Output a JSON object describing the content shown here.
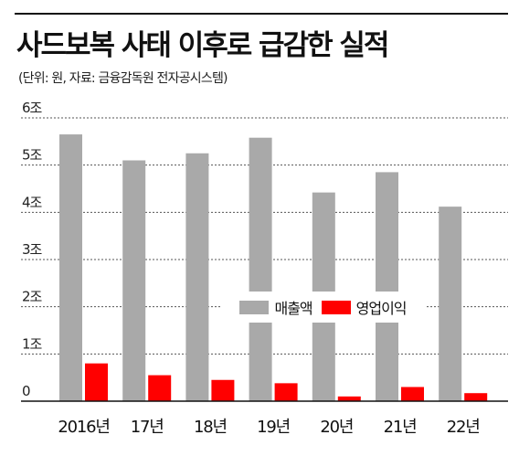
{
  "title": "사드보복 사태 이후로 급감한 실적",
  "subtitle": "(단위: 원, 자료: 금융감독원 전자공시스템)",
  "colors": {
    "revenue": "#a9a9a9",
    "operating_profit": "#ff0000",
    "grid": "#555555"
  },
  "chart_data": {
    "type": "bar",
    "title": "사드보복 사태 이후로 급감한 실적",
    "categories": [
      "2016년",
      "17년",
      "18년",
      "19년",
      "20년",
      "21년",
      "22년"
    ],
    "series": [
      {
        "name": "매출액",
        "values": [
          5.65,
          5.1,
          5.25,
          5.58,
          4.42,
          4.85,
          4.12
        ]
      },
      {
        "name": "영업이익",
        "values": [
          0.8,
          0.55,
          0.45,
          0.38,
          0.1,
          0.3,
          0.17
        ]
      }
    ],
    "y_ticks": [
      0,
      1,
      2,
      3,
      4,
      5,
      6
    ],
    "y_tick_labels": [
      "0",
      "1조",
      "2조",
      "3조",
      "4조",
      "5조",
      "6조"
    ],
    "ylim": [
      0,
      6
    ],
    "grid": true,
    "legend_position": "center-right"
  }
}
